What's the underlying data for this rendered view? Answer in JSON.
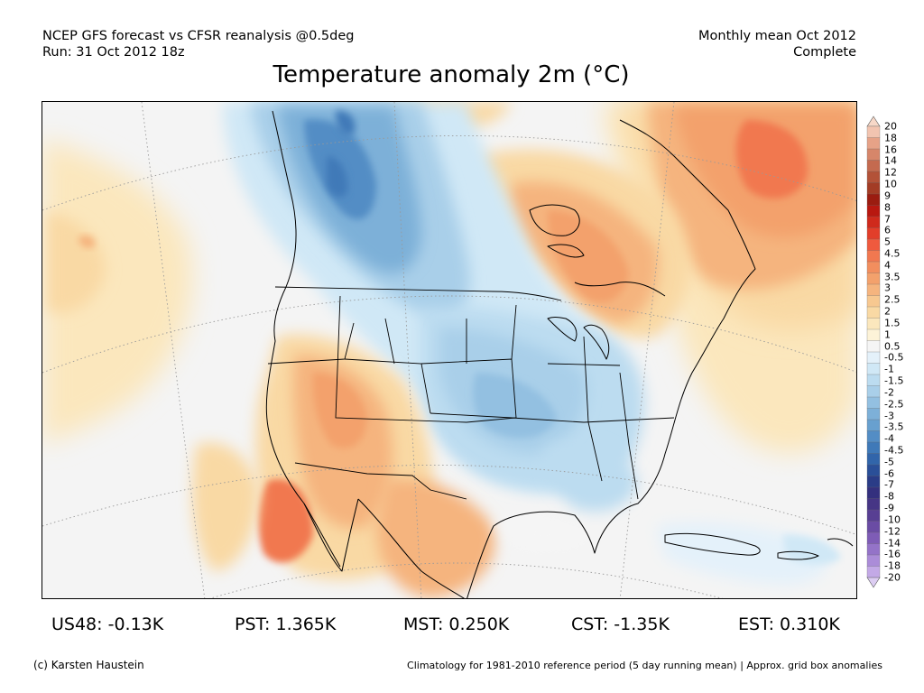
{
  "header": {
    "left_line1": "NCEP GFS forecast vs CFSR reanalysis @0.5deg",
    "left_line2": "Run: 31 Oct 2012 18z",
    "right_line1": "Monthly mean Oct 2012",
    "right_line2": "Complete"
  },
  "title": "Temperature anomaly 2m (°C)",
  "colorbar": {
    "labels": [
      "20",
      "18",
      "16",
      "14",
      "12",
      "10",
      "9",
      "8",
      "7",
      "6",
      "5",
      "4.5",
      "4",
      "3.5",
      "3",
      "2.5",
      "2",
      "1.5",
      "1",
      "0.5",
      "-0.5",
      "-1",
      "-1.5",
      "-2",
      "-2.5",
      "-3",
      "-3.5",
      "-4",
      "-4.5",
      "-5",
      "-6",
      "-7",
      "-8",
      "-9",
      "-10",
      "-12",
      "-14",
      "-16",
      "-18",
      "-20"
    ],
    "colors": [
      "#f2c4b0",
      "#e6a287",
      "#d6866a",
      "#c46a4f",
      "#b35238",
      "#a33c25",
      "#9b1c10",
      "#b81810",
      "#cf2a1c",
      "#e23e2a",
      "#ef5a3e",
      "#f17850",
      "#f28e5e",
      "#f3a16c",
      "#f5b47e",
      "#f7c890",
      "#f9d9a4",
      "#fbe7bd",
      "#fdf3d8",
      "#f5f5f5",
      "#e4f1fa",
      "#d0e8f6",
      "#bcdcf0",
      "#a9cfe9",
      "#93c0e1",
      "#7db0d8",
      "#68a0cf",
      "#538dc5",
      "#3f79b8",
      "#3165aa",
      "#2a4f98",
      "#2a3c87",
      "#34307e",
      "#463585",
      "#583f93",
      "#6a4ca4",
      "#7e5cb6",
      "#9473c8",
      "#ab8cd8",
      "#c3a9e6"
    ],
    "tip_top_color": "#f7d8c8",
    "tip_bottom_color": "#dccdf2"
  },
  "stats": [
    {
      "label": "US48: -0.13K"
    },
    {
      "label": "PST: 1.365K"
    },
    {
      "label": "MST: 0.250K"
    },
    {
      "label": "CST: -1.35K"
    },
    {
      "label": "EST: 0.310K"
    }
  ],
  "footer": {
    "left": "(c) Karsten Haustein",
    "right": "Climatology for 1981-2010 reference period (5 day running mean) | Approx. grid box anomalies"
  }
}
